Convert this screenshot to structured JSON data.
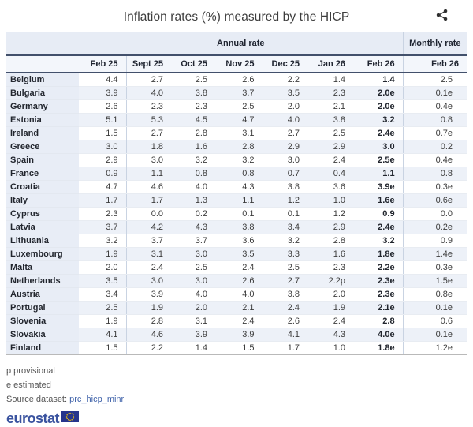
{
  "title": "Inflation rates (%) measured by the HICP",
  "icons": {
    "share": "share-nodes-icon",
    "eu_flag": "eu-flag-icon"
  },
  "chart_data": {
    "type": "table",
    "title": "Inflation rates (%) measured by the HICP",
    "column_groups": [
      {
        "label": "Annual rate",
        "span": 7
      },
      {
        "label": "Monthly rate",
        "span": 1
      }
    ],
    "columns": [
      "Feb 25",
      "Sept 25",
      "Oct 25",
      "Nov 25",
      "Dec 25",
      "Jan 26",
      "Feb 26",
      "Feb 26"
    ],
    "rows": [
      {
        "country": "Belgium",
        "annual": [
          "4.4",
          "2.7",
          "2.5",
          "2.6",
          "2.2",
          "1.4",
          "1.4"
        ],
        "monthly": "2.5"
      },
      {
        "country": "Bulgaria",
        "annual": [
          "3.9",
          "4.0",
          "3.8",
          "3.7",
          "3.5",
          "2.3",
          "2.0e"
        ],
        "monthly": "0.1e"
      },
      {
        "country": "Germany",
        "annual": [
          "2.6",
          "2.3",
          "2.3",
          "2.5",
          "2.0",
          "2.1",
          "2.0e"
        ],
        "monthly": "0.4e"
      },
      {
        "country": "Estonia",
        "annual": [
          "5.1",
          "5.3",
          "4.5",
          "4.7",
          "4.0",
          "3.8",
          "3.2"
        ],
        "monthly": "0.8"
      },
      {
        "country": "Ireland",
        "annual": [
          "1.5",
          "2.7",
          "2.8",
          "3.1",
          "2.7",
          "2.5",
          "2.4e"
        ],
        "monthly": "0.7e"
      },
      {
        "country": "Greece",
        "annual": [
          "3.0",
          "1.8",
          "1.6",
          "2.8",
          "2.9",
          "2.9",
          "3.0"
        ],
        "monthly": "0.2"
      },
      {
        "country": "Spain",
        "annual": [
          "2.9",
          "3.0",
          "3.2",
          "3.2",
          "3.0",
          "2.4",
          "2.5e"
        ],
        "monthly": "0.4e"
      },
      {
        "country": "France",
        "annual": [
          "0.9",
          "1.1",
          "0.8",
          "0.8",
          "0.7",
          "0.4",
          "1.1"
        ],
        "monthly": "0.8"
      },
      {
        "country": "Croatia",
        "annual": [
          "4.7",
          "4.6",
          "4.0",
          "4.3",
          "3.8",
          "3.6",
          "3.9e"
        ],
        "monthly": "0.3e"
      },
      {
        "country": "Italy",
        "annual": [
          "1.7",
          "1.7",
          "1.3",
          "1.1",
          "1.2",
          "1.0",
          "1.6e"
        ],
        "monthly": "0.6e"
      },
      {
        "country": "Cyprus",
        "annual": [
          "2.3",
          "0.0",
          "0.2",
          "0.1",
          "0.1",
          "1.2",
          "0.9"
        ],
        "monthly": "0.0"
      },
      {
        "country": "Latvia",
        "annual": [
          "3.7",
          "4.2",
          "4.3",
          "3.8",
          "3.4",
          "2.9",
          "2.4e"
        ],
        "monthly": "0.2e"
      },
      {
        "country": "Lithuania",
        "annual": [
          "3.2",
          "3.7",
          "3.7",
          "3.6",
          "3.2",
          "2.8",
          "3.2"
        ],
        "monthly": "0.9"
      },
      {
        "country": "Luxembourg",
        "annual": [
          "1.9",
          "3.1",
          "3.0",
          "3.5",
          "3.3",
          "1.6",
          "1.8e"
        ],
        "monthly": "1.4e"
      },
      {
        "country": "Malta",
        "annual": [
          "2.0",
          "2.4",
          "2.5",
          "2.4",
          "2.5",
          "2.3",
          "2.2e"
        ],
        "monthly": "0.3e"
      },
      {
        "country": "Netherlands",
        "annual": [
          "3.5",
          "3.0",
          "3.0",
          "2.6",
          "2.7",
          "2.2p",
          "2.3e"
        ],
        "monthly": "1.5e"
      },
      {
        "country": "Austria",
        "annual": [
          "3.4",
          "3.9",
          "4.0",
          "4.0",
          "3.8",
          "2.0",
          "2.3e"
        ],
        "monthly": "0.8e"
      },
      {
        "country": "Portugal",
        "annual": [
          "2.5",
          "1.9",
          "2.0",
          "2.1",
          "2.4",
          "1.9",
          "2.1e"
        ],
        "monthly": "0.1e"
      },
      {
        "country": "Slovenia",
        "annual": [
          "1.9",
          "2.8",
          "3.1",
          "2.4",
          "2.6",
          "2.4",
          "2.8"
        ],
        "monthly": "0.6"
      },
      {
        "country": "Slovakia",
        "annual": [
          "4.1",
          "4.6",
          "3.9",
          "3.9",
          "4.1",
          "4.3",
          "4.0e"
        ],
        "monthly": "0.1e"
      },
      {
        "country": "Finland",
        "annual": [
          "1.5",
          "2.2",
          "1.4",
          "1.5",
          "1.7",
          "1.0",
          "1.8e"
        ],
        "monthly": "1.2e"
      }
    ]
  },
  "footnotes": [
    "p provisional",
    "e estimated"
  ],
  "source": {
    "label": "Source dataset:",
    "link": "prc_hicp_minr"
  },
  "logo": {
    "text": "eurostat"
  },
  "colors": {
    "header_band_bg": "#e7ecf5",
    "header_cols_bg": "#f3f6fb",
    "country_col_bg": "#e8edf6",
    "stripe_bg": "#edf1f8",
    "dark_border": "#42506b",
    "light_separator": "#c9d3e2",
    "link_blue": "#4063aa",
    "logo_blue": "#3a539f",
    "flag_blue": "#26358c",
    "flag_stars": "#ffcc00"
  }
}
